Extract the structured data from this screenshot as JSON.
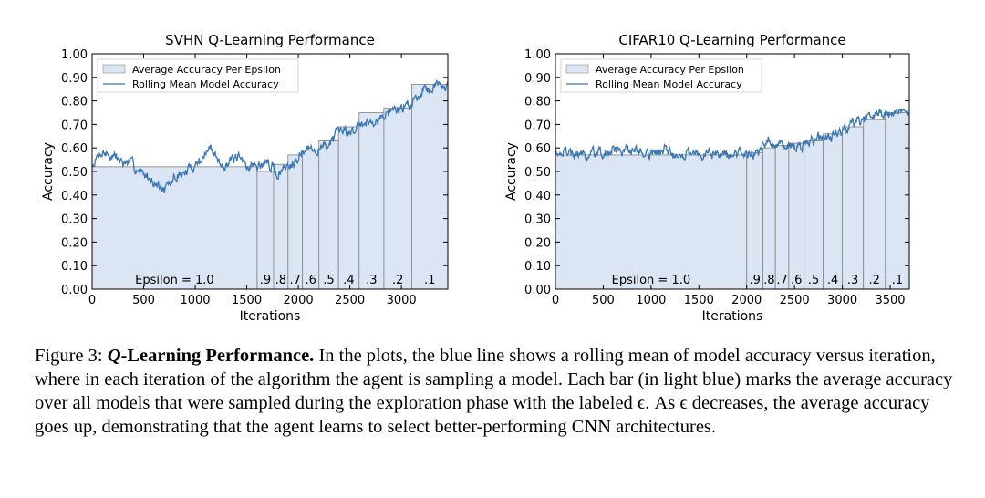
{
  "chart_data": [
    {
      "type": "bar+line",
      "title": "SVHN Q-Learning Performance",
      "xlabel": "Iterations",
      "ylabel": "Accuracy",
      "xlim": [
        0,
        3450
      ],
      "ylim": [
        0,
        1.0
      ],
      "xticks": [
        0,
        500,
        1000,
        1500,
        2000,
        2500,
        3000
      ],
      "yticks": [
        "0.00",
        "0.10",
        "0.20",
        "0.30",
        "0.40",
        "0.50",
        "0.60",
        "0.70",
        "0.80",
        "0.90",
        "1.00"
      ],
      "legend_position": "top-left",
      "legend": [
        "Average Accuracy Per Epsilon",
        "Rolling Mean Model Accuracy"
      ],
      "epsilon_bars": [
        {
          "label": "Epsilon = 1.0",
          "x0": 0,
          "x1": 1600,
          "value": 0.52
        },
        {
          "label": ".9",
          "x0": 1600,
          "x1": 1760,
          "value": 0.5
        },
        {
          "label": ".8",
          "x0": 1760,
          "x1": 1900,
          "value": 0.53
        },
        {
          "label": ".7",
          "x0": 1900,
          "x1": 2040,
          "value": 0.57
        },
        {
          "label": ".6",
          "x0": 2040,
          "x1": 2200,
          "value": 0.59
        },
        {
          "label": ".5",
          "x0": 2200,
          "x1": 2390,
          "value": 0.63
        },
        {
          "label": ".4",
          "x0": 2390,
          "x1": 2590,
          "value": 0.69
        },
        {
          "label": ".3",
          "x0": 2590,
          "x1": 2830,
          "value": 0.75
        },
        {
          "label": ".2",
          "x0": 2830,
          "x1": 3100,
          "value": 0.77
        },
        {
          "label": ".1",
          "x0": 3100,
          "x1": 3450,
          "value": 0.87
        }
      ],
      "rolling_mean_anchors": {
        "x": [
          0,
          100,
          300,
          500,
          620,
          700,
          800,
          1000,
          1150,
          1250,
          1400,
          1600,
          1700,
          1800,
          1900,
          2000,
          2200,
          2400,
          2600,
          2800,
          3000,
          3100,
          3200,
          3300,
          3450
        ],
        "y": [
          0.52,
          0.58,
          0.54,
          0.5,
          0.45,
          0.41,
          0.47,
          0.53,
          0.6,
          0.54,
          0.55,
          0.52,
          0.54,
          0.49,
          0.53,
          0.58,
          0.6,
          0.65,
          0.7,
          0.74,
          0.77,
          0.79,
          0.85,
          0.87,
          0.88
        ]
      }
    },
    {
      "type": "bar+line",
      "title": "CIFAR10 Q-Learning Performance",
      "xlabel": "Iterations",
      "ylabel": "Accuracy",
      "xlim": [
        0,
        3700
      ],
      "ylim": [
        0,
        1.0
      ],
      "xticks": [
        0,
        500,
        1000,
        1500,
        2000,
        2500,
        3000,
        3500
      ],
      "yticks": [
        "0.00",
        "0.10",
        "0.20",
        "0.30",
        "0.40",
        "0.50",
        "0.60",
        "0.70",
        "0.80",
        "0.90",
        "1.00"
      ],
      "legend_position": "top-left",
      "legend": [
        "Average Accuracy Per Epsilon",
        "Rolling Mean Model Accuracy"
      ],
      "epsilon_bars": [
        {
          "label": "Epsilon = 1.0",
          "x0": 0,
          "x1": 2000,
          "value": 0.57
        },
        {
          "label": ".9",
          "x0": 2000,
          "x1": 2170,
          "value": 0.58
        },
        {
          "label": ".8",
          "x0": 2170,
          "x1": 2300,
          "value": 0.6
        },
        {
          "label": ".7",
          "x0": 2300,
          "x1": 2440,
          "value": 0.61
        },
        {
          "label": ".6",
          "x0": 2440,
          "x1": 2600,
          "value": 0.62
        },
        {
          "label": ".5",
          "x0": 2600,
          "x1": 2800,
          "value": 0.63
        },
        {
          "label": ".4",
          "x0": 2800,
          "x1": 3000,
          "value": 0.66
        },
        {
          "label": ".3",
          "x0": 3000,
          "x1": 3220,
          "value": 0.69
        },
        {
          "label": ".2",
          "x0": 3220,
          "x1": 3450,
          "value": 0.72
        },
        {
          "label": ".1",
          "x0": 3450,
          "x1": 3700,
          "value": 0.75
        }
      ],
      "rolling_mean_anchors": {
        "x": [
          0,
          200,
          500,
          800,
          1000,
          1300,
          1600,
          2000,
          2200,
          2400,
          2600,
          2800,
          3000,
          3200,
          3400,
          3600,
          3700
        ],
        "y": [
          0.59,
          0.57,
          0.58,
          0.6,
          0.58,
          0.59,
          0.57,
          0.58,
          0.6,
          0.61,
          0.62,
          0.64,
          0.67,
          0.71,
          0.74,
          0.75,
          0.77
        ]
      }
    }
  ],
  "caption": {
    "lead": "Figure 3: ",
    "title_q": "Q",
    "title_rest": "-Learning Performance.",
    "body": " In the plots, the blue line shows a rolling mean of model accuracy versus iteration, where in each iteration of the algorithm the agent is sampling a model. Each bar (in light blue) marks the average accuracy over all models that were sampled during the exploration phase with the labeled ϵ. As ϵ decreases, the average accuracy goes up, demonstrating that the agent learns to select better-performing CNN architectures."
  }
}
